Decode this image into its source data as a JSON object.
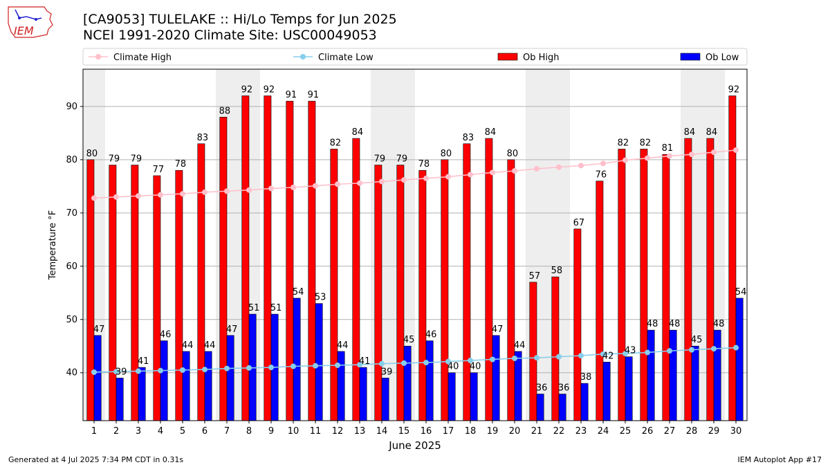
{
  "header": {
    "title": "[CA9053] TULELAKE :: Hi/Lo Temps for Jun 2025",
    "subtitle": "NCEI 1991-2020 Climate Site: USC00049053",
    "logo_text": "IEM"
  },
  "footer": {
    "generated": "Generated at 4 Jul 2025 7:34 PM CDT in 0.31s",
    "app": "IEM Autoplot App #17"
  },
  "chart_data": {
    "type": "bar",
    "xlabel": "June 2025",
    "ylabel": "Temperature °F",
    "ylim": [
      31,
      97
    ],
    "yticks": [
      40,
      50,
      60,
      70,
      80,
      90
    ],
    "grid": true,
    "legend_position": "top",
    "categories": [
      "1",
      "2",
      "3",
      "4",
      "5",
      "6",
      "7",
      "8",
      "9",
      "10",
      "11",
      "12",
      "13",
      "14",
      "15",
      "16",
      "17",
      "18",
      "19",
      "20",
      "21",
      "22",
      "23",
      "24",
      "25",
      "26",
      "27",
      "28",
      "29",
      "30"
    ],
    "weekend_days": [
      1,
      7,
      8,
      14,
      15,
      21,
      22,
      28,
      29
    ],
    "series": [
      {
        "name": "Climate High",
        "kind": "line",
        "color": "#ffc0cb",
        "values": [
          72.8,
          73.0,
          73.2,
          73.4,
          73.6,
          73.9,
          74.1,
          74.3,
          74.6,
          74.8,
          75.1,
          75.4,
          75.6,
          75.9,
          76.2,
          76.5,
          76.8,
          77.2,
          77.6,
          77.9,
          78.3,
          78.6,
          78.9,
          79.3,
          79.9,
          80.3,
          80.7,
          81.0,
          81.4,
          81.8
        ]
      },
      {
        "name": "Climate Low",
        "kind": "line",
        "color": "#87ceeb",
        "values": [
          40.1,
          40.2,
          40.3,
          40.4,
          40.5,
          40.6,
          40.8,
          40.9,
          41.0,
          41.2,
          41.3,
          41.4,
          41.5,
          41.7,
          41.8,
          41.9,
          42.1,
          42.3,
          42.5,
          42.7,
          42.8,
          43.0,
          43.2,
          43.5,
          43.6,
          43.8,
          44.1,
          44.3,
          44.5,
          44.7
        ]
      },
      {
        "name": "Ob High",
        "kind": "bar",
        "color": "#ff0000",
        "values": [
          80,
          79,
          79,
          77,
          78,
          83,
          88,
          92,
          92,
          91,
          91,
          82,
          84,
          79,
          79,
          78,
          80,
          83,
          84,
          80,
          57,
          58,
          67,
          76,
          82,
          82,
          81,
          84,
          84,
          92
        ]
      },
      {
        "name": "Ob Low",
        "kind": "bar",
        "color": "#0000ff",
        "values": [
          47,
          39,
          41,
          46,
          44,
          44,
          47,
          51,
          51,
          54,
          53,
          44,
          41,
          39,
          45,
          46,
          40,
          40,
          47,
          44,
          36,
          36,
          38,
          42,
          43,
          48,
          48,
          45,
          48,
          54
        ]
      }
    ]
  }
}
